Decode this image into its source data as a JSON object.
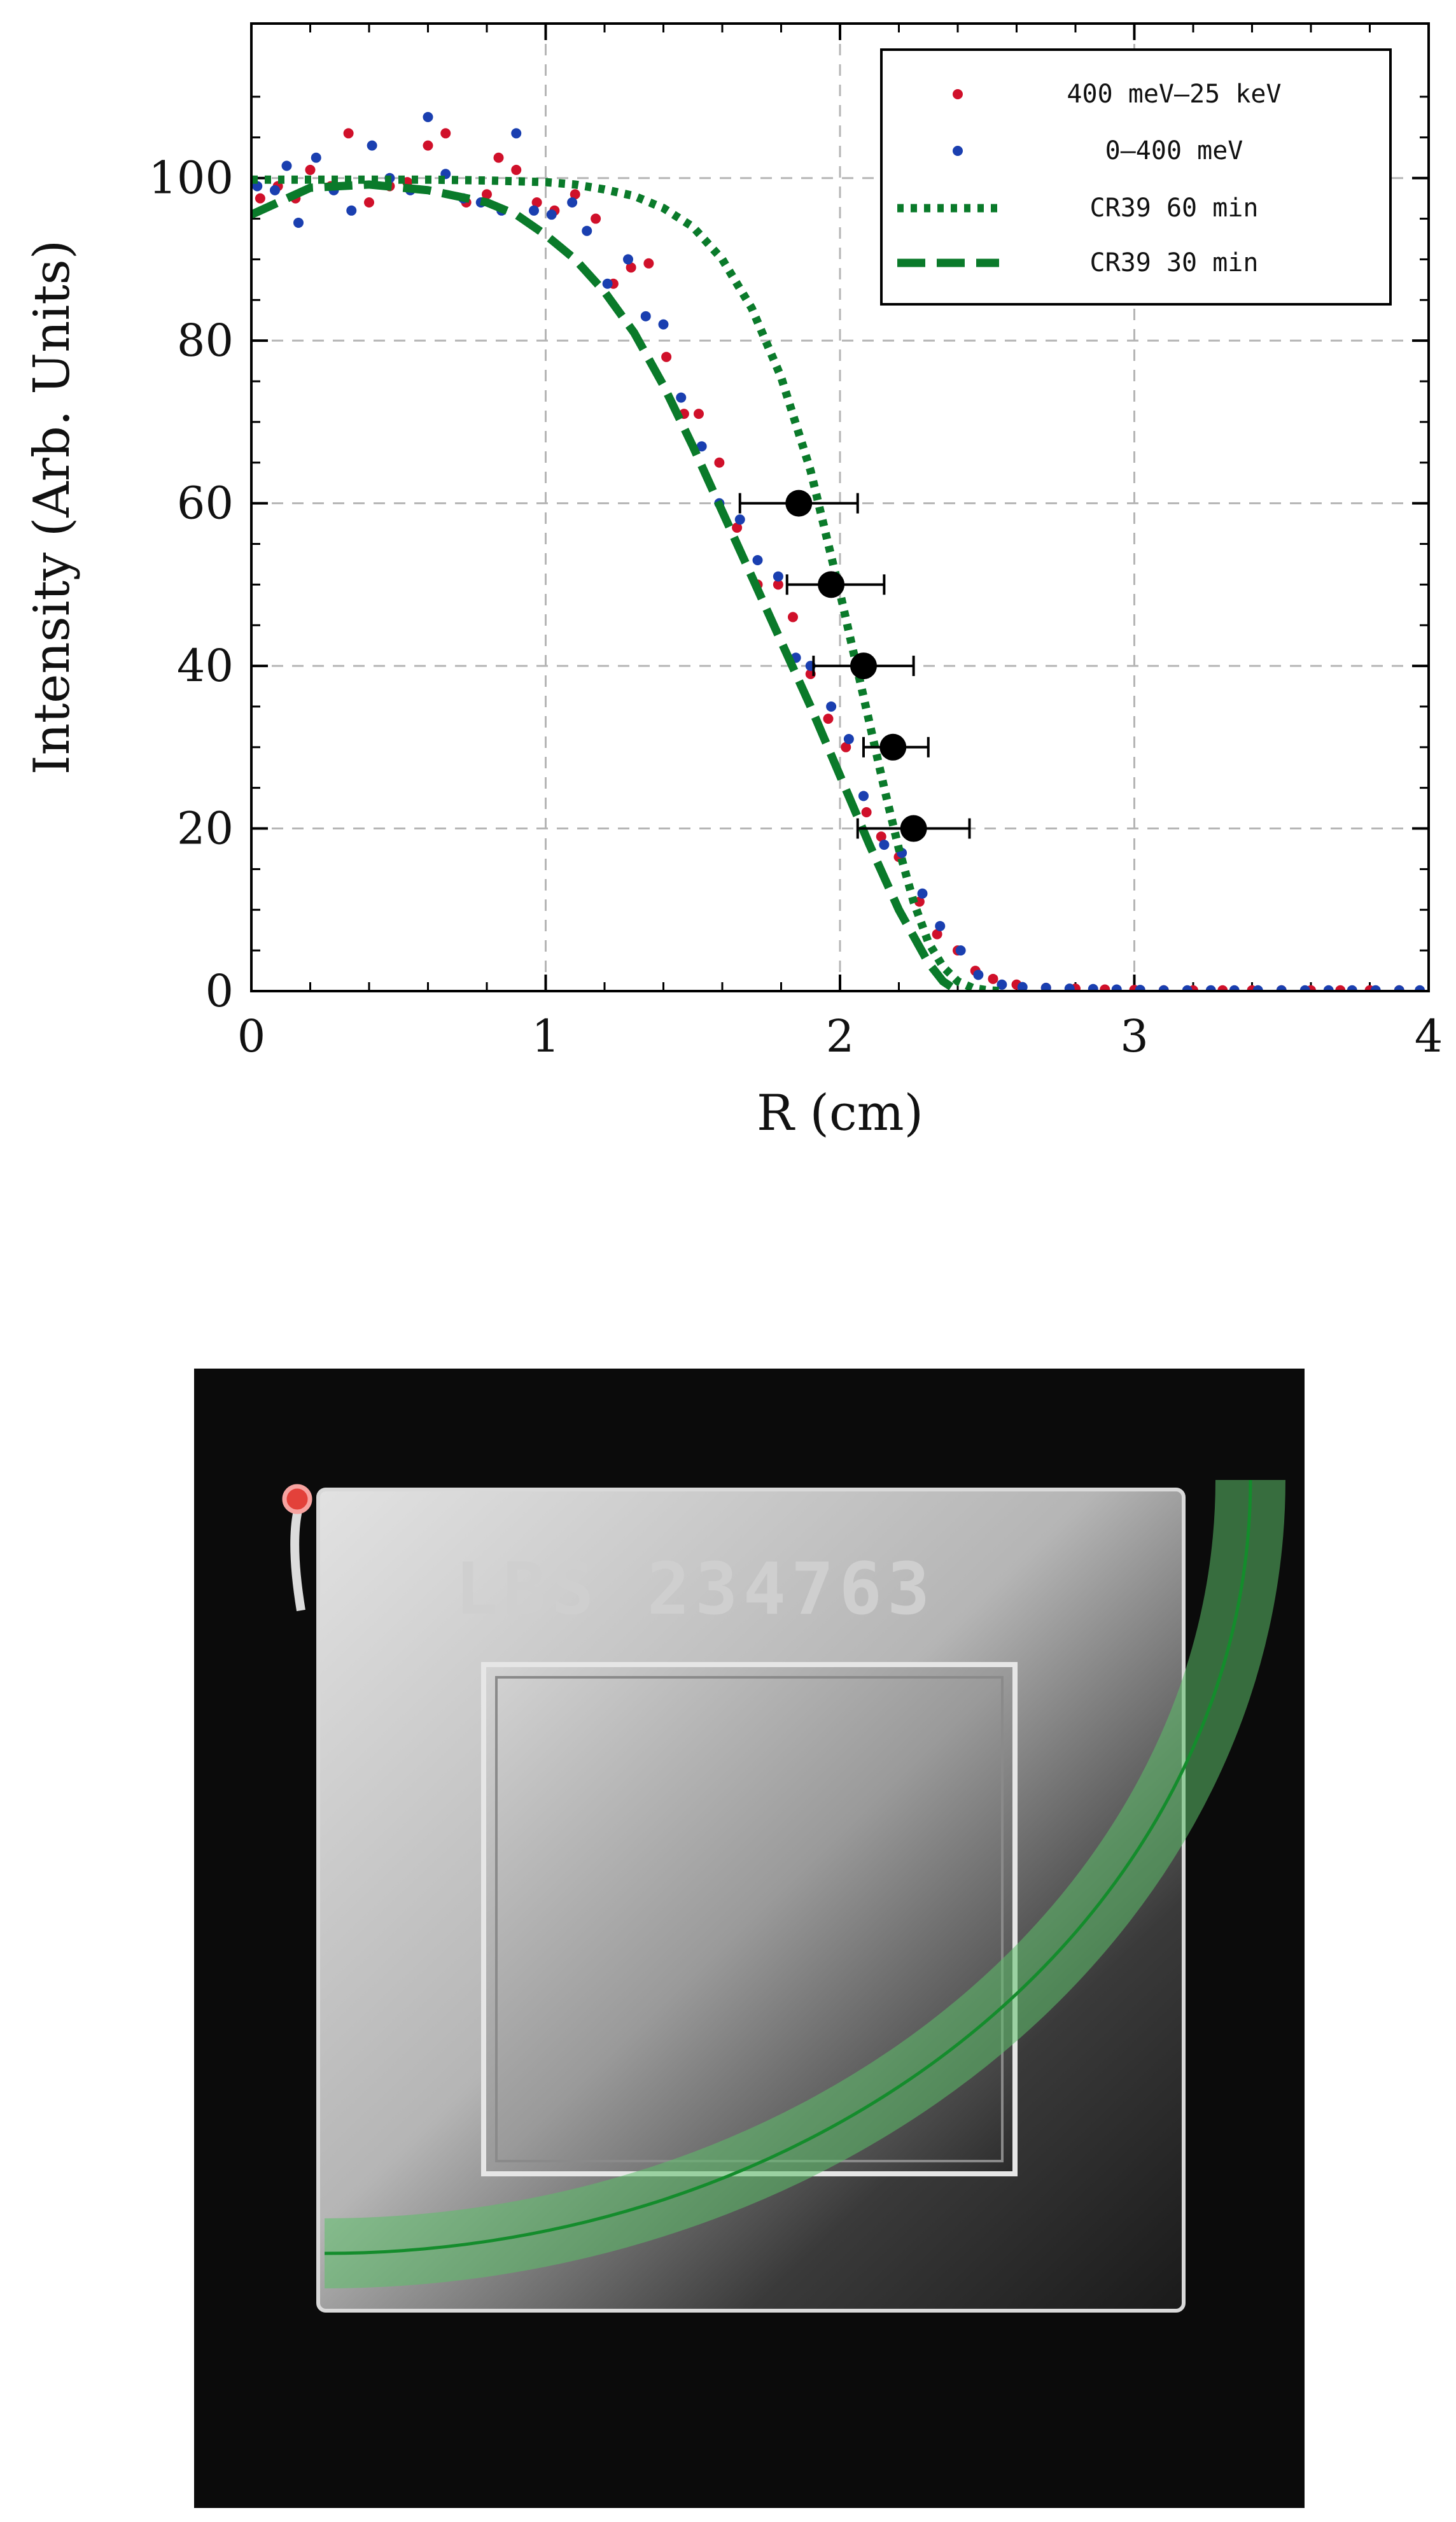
{
  "chart_data": {
    "type": "scatter",
    "title": "",
    "xlabel": "R (cm)",
    "ylabel": "Intensity (Arb. Units)",
    "xlim": [
      0,
      4
    ],
    "ylim": [
      0,
      119
    ],
    "xticks": [
      "0",
      "1",
      "2",
      "3",
      "4"
    ],
    "yticks": [
      "0",
      "20",
      "40",
      "60",
      "80",
      "100"
    ],
    "grid": true,
    "legend_position": "top-right",
    "series": [
      {
        "name": "400 meV–25 keV",
        "kind": "scatter",
        "color": "#d0102a",
        "x": [
          0.03,
          0.09,
          0.15,
          0.2,
          0.27,
          0.33,
          0.4,
          0.47,
          0.53,
          0.6,
          0.66,
          0.73,
          0.8,
          0.84,
          0.9,
          0.97,
          1.03,
          1.1,
          1.17,
          1.23,
          1.29,
          1.35,
          1.41,
          1.47,
          1.52,
          1.59,
          1.65,
          1.72,
          1.79,
          1.84,
          1.9,
          1.96,
          2.02,
          2.09,
          2.14,
          2.2,
          2.27,
          2.33,
          2.4,
          2.46,
          2.52,
          2.6,
          2.7,
          2.8,
          2.9,
          3.0,
          3.1,
          3.2,
          3.3,
          3.4,
          3.5,
          3.6,
          3.7,
          3.8,
          3.9
        ],
        "y": [
          97.5,
          99,
          97.5,
          101,
          99,
          105.5,
          97,
          99,
          99.5,
          104,
          105.5,
          97,
          98,
          102.5,
          101,
          97,
          96,
          98,
          95,
          87,
          89,
          89.5,
          78,
          71,
          71,
          65,
          57,
          50,
          50,
          46,
          39,
          33.5,
          30,
          22,
          19,
          16.5,
          11,
          7,
          5,
          2.5,
          1.5,
          0.8,
          0.4,
          0.3,
          0.2,
          0.15,
          0.1,
          0.1,
          0.1,
          0.1,
          0.1,
          0.1,
          0.1,
          0.1,
          0.1
        ]
      },
      {
        "name": "0–400 meV",
        "kind": "scatter",
        "color": "#1a3fb0",
        "x": [
          0.02,
          0.08,
          0.12,
          0.16,
          0.22,
          0.28,
          0.34,
          0.41,
          0.47,
          0.54,
          0.6,
          0.66,
          0.72,
          0.78,
          0.85,
          0.9,
          0.96,
          1.02,
          1.09,
          1.14,
          1.21,
          1.28,
          1.34,
          1.4,
          1.46,
          1.53,
          1.59,
          1.66,
          1.72,
          1.79,
          1.85,
          1.9,
          1.97,
          2.03,
          2.08,
          2.15,
          2.21,
          2.28,
          2.34,
          2.41,
          2.47,
          2.55,
          2.62,
          2.7,
          2.78,
          2.86,
          2.94,
          3.02,
          3.1,
          3.18,
          3.26,
          3.34,
          3.42,
          3.5,
          3.58,
          3.66,
          3.74,
          3.82,
          3.9,
          3.97
        ],
        "y": [
          99,
          98.5,
          101.5,
          94.5,
          102.5,
          98.5,
          96,
          104,
          100,
          98.5,
          107.5,
          100.5,
          97.5,
          97,
          96,
          105.5,
          96,
          95.5,
          97,
          93.5,
          87,
          90,
          83,
          82,
          73,
          67,
          60,
          58,
          53,
          51,
          41,
          40,
          35,
          31,
          24,
          18,
          17,
          12,
          8,
          5,
          2,
          0.8,
          0.5,
          0.4,
          0.3,
          0.25,
          0.2,
          0.15,
          0.1,
          0.1,
          0.1,
          0.1,
          0.1,
          0.1,
          0.1,
          0.1,
          0.1,
          0.1,
          0.1,
          0.1
        ]
      },
      {
        "name": "CR39 60 min",
        "kind": "line-dotted",
        "color": "#0a7a2a",
        "x": [
          0,
          0.2,
          0.4,
          0.6,
          0.8,
          1.0,
          1.1,
          1.2,
          1.3,
          1.4,
          1.5,
          1.6,
          1.7,
          1.8,
          1.9,
          2.0,
          2.05,
          2.1,
          2.15,
          2.2,
          2.25,
          2.3,
          2.35,
          2.4,
          2.45,
          2.5,
          2.55
        ],
        "y": [
          99.8,
          99.8,
          99.8,
          99.8,
          99.7,
          99.5,
          99.2,
          98.6,
          97.8,
          96.3,
          94,
          90,
          84,
          75.5,
          64,
          49,
          41,
          33,
          25,
          17.5,
          11,
          6,
          3,
          1.2,
          0.4,
          0.1,
          0
        ]
      },
      {
        "name": "CR39 30 min",
        "kind": "line-dashed",
        "color": "#0a7a2a",
        "x": [
          0,
          0.2,
          0.4,
          0.6,
          0.8,
          0.9,
          1.0,
          1.1,
          1.2,
          1.3,
          1.4,
          1.5,
          1.6,
          1.7,
          1.8,
          1.9,
          2.0,
          2.1,
          2.2,
          2.3,
          2.35,
          2.4
        ],
        "y": [
          95.5,
          98.8,
          99.2,
          98.5,
          97,
          95.5,
          93,
          90,
          86,
          81,
          74.5,
          67,
          59,
          51,
          43,
          35,
          26.5,
          18,
          10,
          3.5,
          1.2,
          0
        ]
      }
    ],
    "points_with_error": {
      "name": "",
      "color": "#000000",
      "x": [
        1.86,
        1.97,
        2.08,
        2.18,
        2.25
      ],
      "y": [
        60,
        50,
        40,
        30,
        20
      ],
      "x_err_low": [
        0.2,
        0.15,
        0.17,
        0.1,
        0.19
      ],
      "x_err_high": [
        0.2,
        0.18,
        0.17,
        0.12,
        0.19
      ]
    }
  },
  "photo": {
    "plate_label": "LBS 234763",
    "background_color": "#0b0b0b",
    "arc_color": "#5cc06a"
  }
}
